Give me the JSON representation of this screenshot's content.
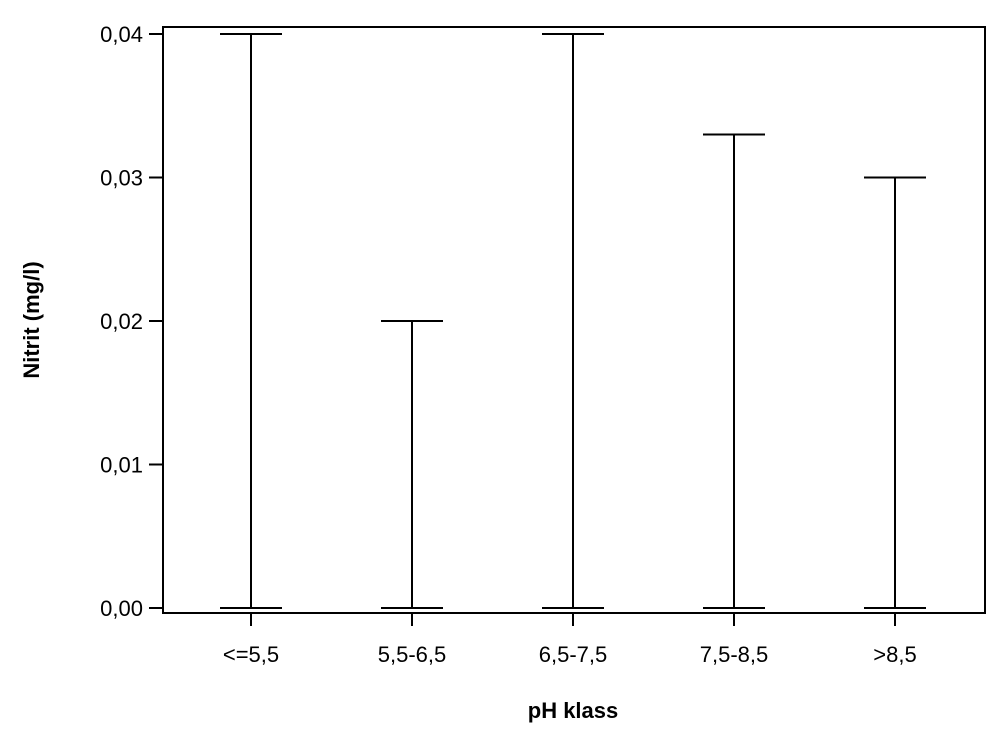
{
  "chart_data": {
    "type": "range",
    "xlabel": "pH klass",
    "ylabel": "Nitrit (mg/l)",
    "categories": [
      "<=5,5",
      "5,5-6,5",
      "6,5-7,5",
      "7,5-8,5",
      ">8,5"
    ],
    "series": [
      {
        "low": [
          0.0,
          0.0,
          0.0,
          0.0,
          0.0
        ],
        "high": [
          0.04,
          0.02,
          0.04,
          0.033,
          0.03
        ]
      }
    ],
    "ylim": [
      0.0,
      0.04
    ],
    "yticks": [
      0.0,
      0.01,
      0.02,
      0.03,
      0.04
    ],
    "ytick_labels": [
      "0,00",
      "0,01",
      "0,02",
      "0,03",
      "0,04"
    ],
    "grid": false,
    "legend": "none"
  }
}
